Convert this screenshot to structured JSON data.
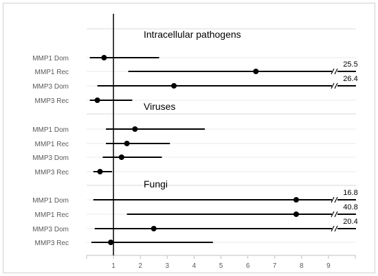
{
  "chart_data": {
    "type": "forest-plot",
    "x_ticks": [
      "1",
      "2",
      "3",
      "4",
      "5",
      "6",
      "7",
      "8",
      "9"
    ],
    "xlim": [
      0,
      10
    ],
    "reference_line": 1,
    "grid": true,
    "groups": [
      {
        "title": "Intracellular pathogens",
        "rows": [
          {
            "label": "MMP1 Dom",
            "point": 0.65,
            "low": 0.12,
            "high": 2.7,
            "high_label": ""
          },
          {
            "label": "MMP1 Rec",
            "point": 6.3,
            "low": 1.55,
            "high": 25.5,
            "high_label": "25.5"
          },
          {
            "label": "MMP3 Dom",
            "point": 3.25,
            "low": 0.4,
            "high": 26.4,
            "high_label": "26.4"
          },
          {
            "label": "MMP3 Rec",
            "point": 0.4,
            "low": 0.12,
            "high": 1.7,
            "high_label": ""
          }
        ]
      },
      {
        "title": "Viruses",
        "rows": [
          {
            "label": "MMP1 Dom",
            "point": 1.8,
            "low": 0.72,
            "high": 4.4,
            "high_label": ""
          },
          {
            "label": "MMP1 Rec",
            "point": 1.5,
            "low": 0.72,
            "high": 3.1,
            "high_label": ""
          },
          {
            "label": "MMP3 Dom",
            "point": 1.3,
            "low": 0.6,
            "high": 2.8,
            "high_label": ""
          },
          {
            "label": "MMP3 Rec",
            "point": 0.5,
            "low": 0.25,
            "high": 0.95,
            "high_label": ""
          }
        ]
      },
      {
        "title": "Fungi",
        "rows": [
          {
            "label": "MMP1 Dom",
            "point": 7.8,
            "low": 0.25,
            "high": 16.8,
            "high_label": "16.8"
          },
          {
            "label": "MMP1 Rec",
            "point": 7.8,
            "low": 1.5,
            "high": 40.8,
            "high_label": "40.8"
          },
          {
            "label": "MMP3 Dom",
            "point": 2.5,
            "low": 0.3,
            "high": 20.4,
            "high_label": "20.4"
          },
          {
            "label": "MMP3 Rec",
            "point": 0.9,
            "low": 0.18,
            "high": 4.7,
            "high_label": ""
          }
        ]
      }
    ],
    "colors": {
      "line": "#000000",
      "grid": "#d9d9d9",
      "label": "#595959"
    }
  }
}
